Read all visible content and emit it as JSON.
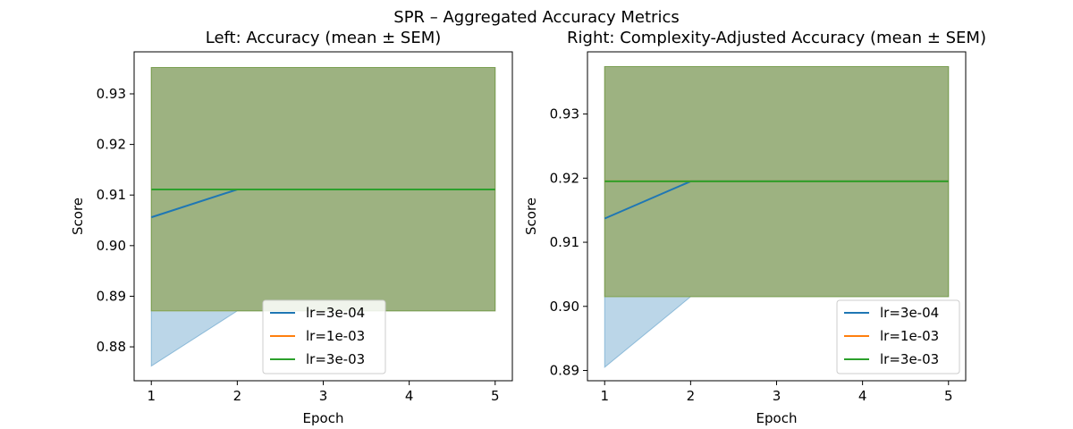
{
  "figure": {
    "suptitle": "SPR – Aggregated Accuracy Metrics"
  },
  "colors": {
    "lr_3e-04": "#1f77b4",
    "lr_1e-03": "#ff7f0e",
    "lr_3e-03": "#2ca02c"
  },
  "chart_data": [
    {
      "type": "line",
      "title": "Left: Accuracy (mean ± SEM)",
      "xlabel": "Epoch",
      "ylabel": "Score",
      "x": [
        1,
        2,
        3,
        4,
        5
      ],
      "xticks": [
        1,
        2,
        3,
        4,
        5
      ],
      "yticks": [
        0.88,
        0.89,
        0.9,
        0.91,
        0.92,
        0.93
      ],
      "ytick_labels": [
        "0.88",
        "0.89",
        "0.90",
        "0.91",
        "0.92",
        "0.93"
      ],
      "xlim": [
        0.8,
        5.2
      ],
      "ylim": [
        0.8733,
        0.9383
      ],
      "legend": "lower-center",
      "series": [
        {
          "name": "lr=3e-04",
          "color": "#1f77b4",
          "mean": [
            0.9056,
            0.9111,
            0.9111,
            0.9111,
            0.9111
          ],
          "lower": [
            0.8762,
            0.8871,
            0.8871,
            0.8871,
            0.8871
          ],
          "upper": [
            0.9352,
            0.9352,
            0.9352,
            0.9352,
            0.9352
          ]
        },
        {
          "name": "lr=1e-03",
          "color": "#ff7f0e",
          "mean": [
            0.9111,
            0.9111,
            0.9111,
            0.9111,
            0.9111
          ],
          "lower": [
            0.8871,
            0.8871,
            0.8871,
            0.8871,
            0.8871
          ],
          "upper": [
            0.9352,
            0.9352,
            0.9352,
            0.9352,
            0.9352
          ]
        },
        {
          "name": "lr=3e-03",
          "color": "#2ca02c",
          "mean": [
            0.9111,
            0.9111,
            0.9111,
            0.9111,
            0.9111
          ],
          "lower": [
            0.8871,
            0.8871,
            0.8871,
            0.8871,
            0.8871
          ],
          "upper": [
            0.9352,
            0.9352,
            0.9352,
            0.9352,
            0.9352
          ]
        }
      ]
    },
    {
      "type": "line",
      "title": "Right: Complexity-Adjusted Accuracy (mean ± SEM)",
      "xlabel": "Epoch",
      "ylabel": "Score",
      "x": [
        1,
        2,
        3,
        4,
        5
      ],
      "xticks": [
        1,
        2,
        3,
        4,
        5
      ],
      "yticks": [
        0.89,
        0.9,
        0.91,
        0.92,
        0.93
      ],
      "ytick_labels": [
        "0.89",
        "0.90",
        "0.91",
        "0.92",
        "0.93"
      ],
      "xlim": [
        0.8,
        5.2
      ],
      "ylim": [
        0.8884,
        0.9397
      ],
      "legend": "lower-right",
      "series": [
        {
          "name": "lr=3e-04",
          "color": "#1f77b4",
          "mean": [
            0.9137,
            0.9195,
            0.9195,
            0.9195,
            0.9195
          ],
          "lower": [
            0.8905,
            0.9015,
            0.9015,
            0.9015,
            0.9015
          ],
          "upper": [
            0.9374,
            0.9374,
            0.9374,
            0.9374,
            0.9374
          ]
        },
        {
          "name": "lr=1e-03",
          "color": "#ff7f0e",
          "mean": [
            0.9195,
            0.9195,
            0.9195,
            0.9195,
            0.9195
          ],
          "lower": [
            0.9015,
            0.9015,
            0.9015,
            0.9015,
            0.9015
          ],
          "upper": [
            0.9374,
            0.9374,
            0.9374,
            0.9374,
            0.9374
          ]
        },
        {
          "name": "lr=3e-03",
          "color": "#2ca02c",
          "mean": [
            0.9195,
            0.9195,
            0.9195,
            0.9195,
            0.9195
          ],
          "lower": [
            0.9015,
            0.9015,
            0.9015,
            0.9015,
            0.9015
          ],
          "upper": [
            0.9374,
            0.9374,
            0.9374,
            0.9374,
            0.9374
          ]
        }
      ]
    }
  ]
}
